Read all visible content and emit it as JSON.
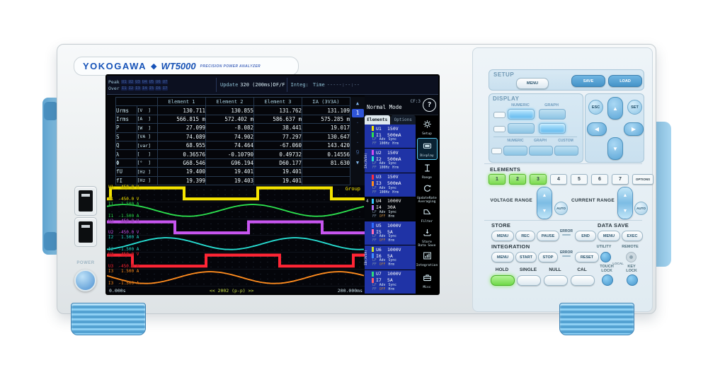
{
  "brand": {
    "name": "YOKOGAWA",
    "diamond": "◆",
    "model": "WT5000",
    "tagline": "PRECISION POWER ANALYZER"
  },
  "left_bezel": {
    "power_label": "POWER"
  },
  "screen": {
    "header": {
      "peak_label": "Peak",
      "over_label": "Over",
      "peak_items": [
        "U1",
        "U2",
        "U3",
        "U4",
        "U5",
        "U6",
        "U7"
      ],
      "over_items": [
        "I1",
        "I2",
        "I3",
        "I4",
        "I5",
        "I6",
        "I7"
      ],
      "update_label": "Update",
      "update_value": "320 (200ms)DF/F",
      "integ_label": "Integ:",
      "time_label": "Time",
      "time_value": "-----:--:--"
    },
    "mode": {
      "cf": "CF:3",
      "label": "Normal Mode",
      "help": "?"
    },
    "tabs": [
      {
        "label": "Elements",
        "selected": true
      },
      {
        "label": "Options",
        "selected": false
      }
    ],
    "table": {
      "columns": [
        "",
        "Element 1",
        "Element 2",
        "Element 3",
        "ΣA (3V3A)"
      ],
      "rows": [
        {
          "name": "Urms",
          "unit": "[V  ]",
          "values": [
            "130.711",
            "130.855",
            "131.762",
            "131.109"
          ]
        },
        {
          "name": "Irms",
          "unit": "[A  ]",
          "values": [
            "566.815 m",
            "572.402 m",
            "586.637 m",
            "575.285 m"
          ]
        },
        {
          "name": "P",
          "unit": "[W  ]",
          "values": [
            "27.099",
            "-8.082",
            "38.441",
            "19.017"
          ]
        },
        {
          "name": "S",
          "unit": "[VA ]",
          "values": [
            "74.089",
            "74.902",
            "77.297",
            "130.647"
          ]
        },
        {
          "name": "Q",
          "unit": "[var]",
          "values": [
            "68.955",
            "74.464",
            "-67.060",
            "143.420"
          ]
        },
        {
          "name": "λ",
          "unit": "[   ]",
          "values": [
            "0.36576",
            "-0.10790",
            "0.49732",
            "0.14556"
          ]
        },
        {
          "name": "Φ",
          "unit": "[°  ]",
          "values": [
            "G68.546",
            "G96.194",
            "D60.177",
            "81.630"
          ]
        },
        {
          "name": "fU",
          "unit": "[Hz ]",
          "values": [
            "19.400",
            "19.401",
            "19.401",
            ""
          ]
        },
        {
          "name": "fI",
          "unit": "[Hz ]",
          "values": [
            "19.399",
            "19.403",
            "19.401",
            ""
          ]
        }
      ]
    },
    "pages": [
      "▲",
      "1",
      "·",
      "·",
      "·",
      "9",
      "▼"
    ],
    "element_list": [
      {
        "side": "",
        "sel": true,
        "u": {
          "name": "U1",
          "val": "150V",
          "color": "#f5e400"
        },
        "i": {
          "name": "I1",
          "val": "500mA",
          "color": "#2ce04e"
        },
        "sub": [
          [
            "LF",
            "Adv",
            "Sync"
          ],
          [
            "FF",
            "100Hz",
            "Hrm"
          ]
        ]
      },
      {
        "side": "ΣA(3V3A)",
        "sel": true,
        "u": {
          "name": "U2",
          "val": "150V",
          "color": "#d24ef0"
        },
        "i": {
          "name": "I2",
          "val": "500mA",
          "color": "#27ded2"
        },
        "sub": [
          [
            "LF",
            "Adv",
            "Sync"
          ],
          [
            "FF",
            "100Hz",
            "Hrm"
          ]
        ]
      },
      {
        "side": "",
        "sel": true,
        "u": {
          "name": "U3",
          "val": "150V",
          "color": "#ff2e3e"
        },
        "i": {
          "name": "I3",
          "val": "500mA",
          "color": "#ff8c1e"
        },
        "sub": [
          [
            "LF",
            "Adv",
            "Sync"
          ],
          [
            "FF",
            "100Hz",
            "Hrm"
          ]
        ]
      },
      {
        "side": "4",
        "sel": false,
        "u": {
          "name": "U4",
          "val": "1000V",
          "color": "#35c8ff"
        },
        "i": {
          "name": "I4",
          "val": "30A",
          "color": "#b06ef5"
        },
        "sub": [
          [
            "LF",
            "Adv",
            "Sync"
          ],
          [
            "FF",
            "OFF",
            "Hrm"
          ]
        ]
      },
      {
        "side": "",
        "sel": true,
        "u": {
          "name": "U5",
          "val": "1000V",
          "color": "#2f6bff"
        },
        "i": {
          "name": "I5",
          "val": "5A",
          "color": "#ff6eb4"
        },
        "sub": [
          [
            "LF",
            "Adv",
            "Sync"
          ],
          [
            "FF",
            "OFF",
            "Hrm"
          ]
        ]
      },
      {
        "side": "ΣB(3V3A)",
        "sel": true,
        "u": {
          "name": "U6",
          "val": "1000V",
          "color": "#cfe32a"
        },
        "i": {
          "name": "I6",
          "val": "5A",
          "color": "#3f8cff"
        },
        "sub": [
          [
            "LF",
            "Adv",
            "Sync"
          ],
          [
            "FF",
            "OFF",
            "Hrm"
          ]
        ]
      },
      {
        "side": "",
        "sel": true,
        "u": {
          "name": "U7",
          "val": "1000V",
          "color": "#2ddc7a"
        },
        "i": {
          "name": "I7",
          "val": "5A",
          "color": "#ff5e6e"
        },
        "sub": [
          [
            "LF",
            "Adv",
            "Sync"
          ],
          [
            "FF",
            "OFF",
            "Hrm"
          ]
        ]
      }
    ],
    "nav_icons": [
      {
        "id": "setup",
        "label": [
          "Setup"
        ],
        "active": false
      },
      {
        "id": "display",
        "label": [
          "Display"
        ],
        "active": true
      },
      {
        "id": "range",
        "label": [
          "Range"
        ],
        "active": false
      },
      {
        "id": "update",
        "label": [
          "UpdateRate",
          "Averaging"
        ],
        "active": false
      },
      {
        "id": "filter",
        "label": [
          "Filter"
        ],
        "active": false
      },
      {
        "id": "store",
        "label": [
          "Store",
          "Data Save"
        ],
        "active": false
      },
      {
        "id": "integration",
        "label": [
          "Integration"
        ],
        "active": false
      },
      {
        "id": "misc",
        "label": [
          "Misc"
        ],
        "active": false
      }
    ],
    "waveform": {
      "t0": "0.000s",
      "center": "<< 2002 (p-p) >>",
      "t1": "200.000ms",
      "group": "Group",
      "traces": [
        {
          "name": "U1",
          "top": "450.0 V",
          "bottom": "-450.0 V",
          "color": "#f5e400",
          "shape": "square",
          "phase": 0.02
        },
        {
          "name": "I1",
          "top": "1.500 A",
          "bottom": "-1.500 A",
          "color": "#2ce04e",
          "shape": "sine",
          "phase": 0.88
        },
        {
          "name": "U2",
          "top": "450.0 V",
          "bottom": "-450.0 V",
          "color": "#c855f0",
          "shape": "square",
          "phase": 0.96
        },
        {
          "name": "I2",
          "top": "1.500 A",
          "bottom": "-1.500 A",
          "color": "#27ded2",
          "shape": "sine",
          "phase": 0.21
        },
        {
          "name": "U3",
          "top": "450.0 V",
          "bottom": "-450.0 V",
          "color": "#ff2535",
          "shape": "square",
          "phase": 0.67
        },
        {
          "name": "I3",
          "top": "1.500 A",
          "bottom": "-1.500 A",
          "color": "#ff8c1e",
          "shape": "sine",
          "phase": 0.55
        }
      ]
    }
  },
  "panel": {
    "setup": {
      "label": "SETUP",
      "menu": "MENU",
      "save": "SAVE",
      "load": "LOAD"
    },
    "display": {
      "label": "DISPLAY",
      "row1_labels": [
        "NUMERIC",
        "GRAPH"
      ],
      "row3_labels": [
        "NUMERIC",
        "GRAPH",
        "CUSTOM"
      ]
    },
    "nav": {
      "esc": "ESC",
      "set": "SET",
      "up": "▲",
      "down": "▼",
      "left": "◀",
      "right": "▶"
    },
    "elements": {
      "label": "ELEMENTS",
      "keys": [
        "1",
        "2",
        "3",
        "4",
        "5",
        "6",
        "7"
      ],
      "options_key": "OPTIONS"
    },
    "voltage_range": {
      "label": "VOLTAGE RANGE",
      "auto": "AUTO"
    },
    "current_range": {
      "label": "CURRENT RANGE",
      "auto": "AUTO"
    },
    "store": {
      "label": "STORE",
      "menu": "MENU",
      "rec": "REC",
      "pause": "PAUSE",
      "error": "ERROR",
      "end": "END"
    },
    "data_save": {
      "label": "DATA SAVE",
      "menu": "MENU",
      "exec": "EXEC"
    },
    "integration": {
      "label": "INTEGRATION",
      "menu": "MENU",
      "start": "START",
      "stop": "STOP",
      "error": "ERROR",
      "reset": "RESET"
    },
    "utility": {
      "label": "UTILITY",
      "remote": "REMOTE",
      "local": "LOCAL"
    },
    "hold": "HOLD",
    "single": "SINGLE",
    "null_key": "NULL",
    "cal": "CAL",
    "touch_lock": [
      "TOUCH",
      "LOCK"
    ],
    "key_lock": [
      "KEY",
      "LOCK"
    ]
  },
  "colors": {
    "lit_green": "#8be25f",
    "lit_blue": "#6cc6f4",
    "save_blue": "#4fa0d8",
    "screen_accent": "#f5e400"
  }
}
